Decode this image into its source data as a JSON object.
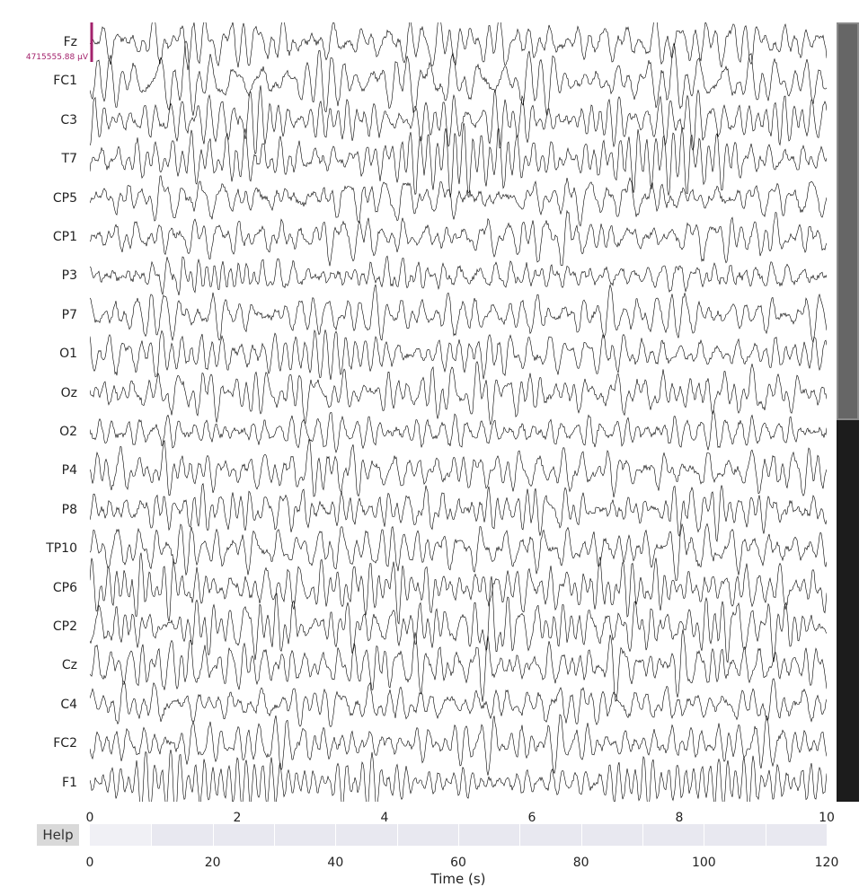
{
  "channels": [
    "Fz",
    "FC1",
    "C3",
    "T7",
    "CP5",
    "CP1",
    "P3",
    "P7",
    "O1",
    "Oz",
    "O2",
    "P4",
    "P8",
    "TP10",
    "CP6",
    "CP2",
    "Cz",
    "C4",
    "FC2",
    "F1"
  ],
  "scale_bar_label": "4715555.88 µV",
  "time_axis": {
    "ticks": [
      "0",
      "2",
      "4",
      "6",
      "8",
      "10"
    ],
    "range": [
      0,
      10
    ]
  },
  "overview_axis": {
    "ticks": [
      "0",
      "20",
      "40",
      "60",
      "80",
      "100",
      "120"
    ],
    "range": [
      0,
      120
    ],
    "label": "Time (s)",
    "segments": [
      10,
      20,
      30,
      40,
      50,
      60,
      70,
      80,
      90,
      100,
      110
    ],
    "view_window": [
      0,
      10
    ]
  },
  "help_label": "Help",
  "vertical_scroll": {
    "visible_fraction": 0.51,
    "position": 0
  },
  "colors": {
    "trace": "#000000",
    "scale_bar": "#a3226c",
    "scroll_track": "#1c1c1c",
    "scroll_thumb": "#666666",
    "background": "#ffffff"
  }
}
